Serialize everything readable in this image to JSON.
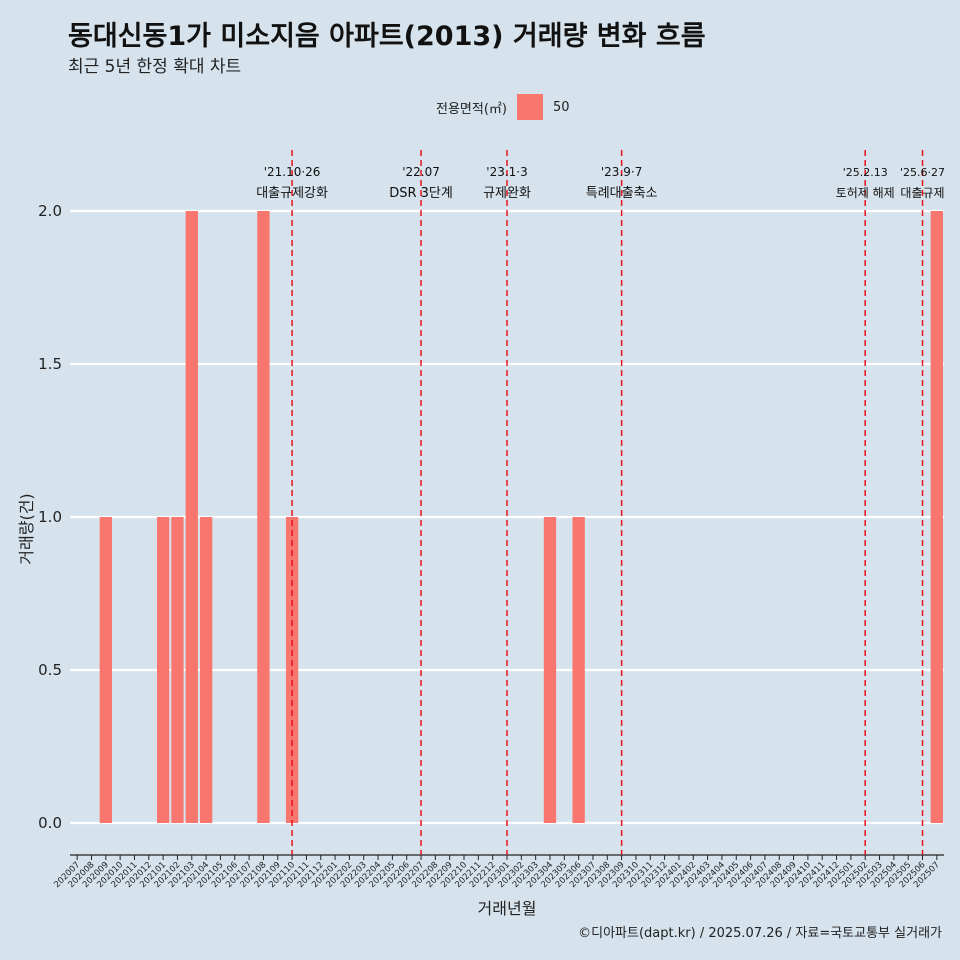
{
  "title": "동대신동1가 미소지음 아파트(2013) 거래량 변화 흐름",
  "subtitle": "최근 5년 한정 확대 차트",
  "legend": {
    "title": "전용면적(㎡)",
    "label": "50",
    "color": "#f8766d"
  },
  "caption": "©디아파트(dapt.kr) / 2025.07.26 / 자료=국토교통부 실거래가",
  "chart_data": {
    "type": "bar",
    "xlabel": "거래년월",
    "ylabel": "거래량(건)",
    "ylim": [
      0,
      2
    ],
    "yticks": [
      "0.0",
      "0.5",
      "1.0",
      "1.5",
      "2.0"
    ],
    "grid": true,
    "legend_position": "top",
    "series": [
      {
        "name": "50",
        "color": "#f8766d"
      }
    ],
    "categories": [
      "202007",
      "202008",
      "202009",
      "202010",
      "202011",
      "202012",
      "202101",
      "202102",
      "202103",
      "202104",
      "202105",
      "202106",
      "202107",
      "202108",
      "202109",
      "202110",
      "202111",
      "202112",
      "202201",
      "202202",
      "202203",
      "202204",
      "202205",
      "202206",
      "202207",
      "202208",
      "202209",
      "202210",
      "202211",
      "202212",
      "202301",
      "202302",
      "202303",
      "202304",
      "202305",
      "202306",
      "202307",
      "202308",
      "202309",
      "202310",
      "202311",
      "202312",
      "202401",
      "202402",
      "202403",
      "202404",
      "202405",
      "202406",
      "202407",
      "202408",
      "202409",
      "202410",
      "202411",
      "202412",
      "202501",
      "202502",
      "202503",
      "202504",
      "202505",
      "202506",
      "202507"
    ],
    "values": [
      0,
      0,
      1,
      0,
      0,
      0,
      1,
      1,
      2,
      1,
      0,
      0,
      0,
      2,
      0,
      1,
      0,
      0,
      0,
      0,
      0,
      0,
      0,
      0,
      0,
      0,
      0,
      0,
      0,
      0,
      0,
      0,
      0,
      1,
      0,
      1,
      0,
      0,
      0,
      0,
      0,
      0,
      0,
      0,
      0,
      0,
      0,
      0,
      0,
      0,
      0,
      0,
      0,
      0,
      0,
      0,
      0,
      0,
      0,
      0,
      2
    ],
    "annotations": [
      {
        "month": "202110",
        "date": "'21.10·26",
        "label": "대출규제강화"
      },
      {
        "month": "202207",
        "date": "'22.07",
        "label": "DSR 3단계"
      },
      {
        "month": "202301",
        "date": "'23.1·3",
        "label": "규제완화"
      },
      {
        "month": "202309",
        "date": "'23.9·7",
        "label": "특례대출축소"
      },
      {
        "month": "202502",
        "date": "'25.2.13",
        "label": "토허제 해제"
      },
      {
        "month": "202506",
        "date": "'25.6·27",
        "label": "대출규제"
      }
    ]
  }
}
